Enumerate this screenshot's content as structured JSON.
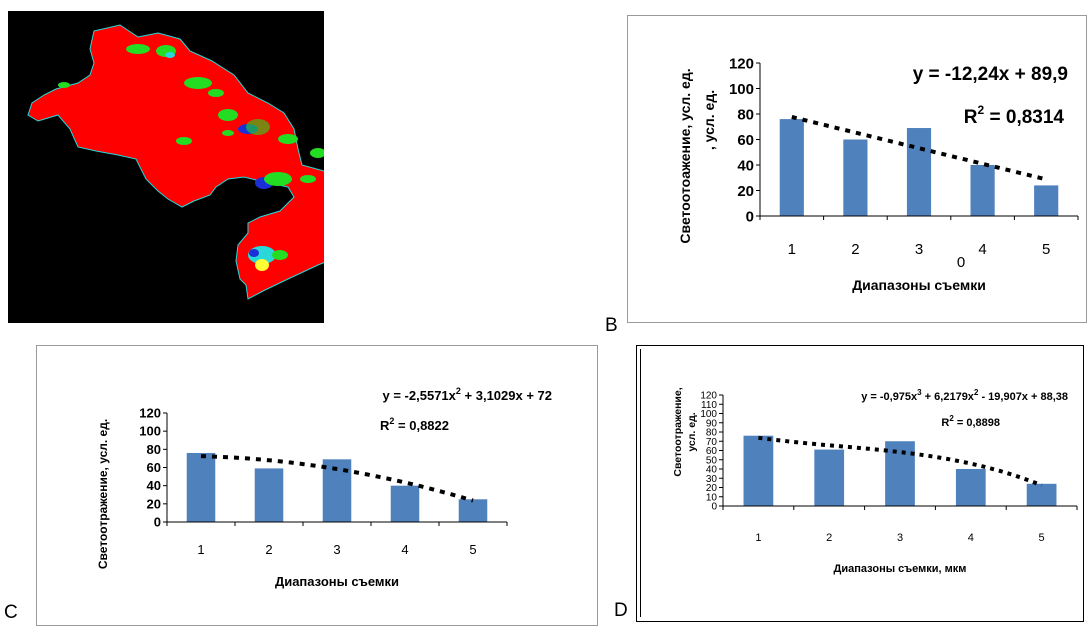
{
  "panels": {
    "b": {
      "letter": "B"
    },
    "c": {
      "letter": "C"
    },
    "d": {
      "letter": "D"
    }
  },
  "map": {
    "colors": {
      "background": "#000000",
      "field": "#ff0000",
      "green": "#22dd22",
      "blue": "#1a2fd6",
      "cyan": "#29d8d8",
      "yellow": "#ffff33"
    }
  },
  "chart_data": [
    {
      "id": "B",
      "type": "bar",
      "categories": [
        "1",
        "2",
        "3",
        "4",
        "5"
      ],
      "values": [
        76,
        60,
        69,
        40,
        24
      ],
      "ylim": [
        0,
        120
      ],
      "yticks": [
        "0",
        "20",
        "40",
        "60",
        "80",
        "100",
        "120"
      ],
      "ylabel": "Светоотоажение, усл. ед.",
      "ylabel2": ", усл. ед.",
      "xlabel": "Диапазоны съемки",
      "stray_label": "0",
      "trendline": {
        "type": "linear",
        "a": -12.24,
        "b": 89.9
      },
      "equation": "y = -12,24x + 89,9",
      "r2_prefix": "R",
      "r2_sup": "2",
      "r2_value": " = 0,8314",
      "bar_color": "#4f81bd",
      "grid": false
    },
    {
      "id": "C",
      "type": "bar",
      "categories": [
        "1",
        "2",
        "3",
        "4",
        "5"
      ],
      "values": [
        76,
        59,
        69,
        40,
        25
      ],
      "ylim": [
        0,
        120
      ],
      "yticks": [
        "0",
        "20",
        "40",
        "60",
        "80",
        "100",
        "120"
      ],
      "ylabel": "Светоотражение, усл. ед.",
      "xlabel": "Диапазоны съемки",
      "trendline": {
        "type": "poly2",
        "coef": [
          -2.5571,
          3.1029,
          72
        ]
      },
      "equation_parts": [
        "y = -2,5571x",
        "2",
        " + 3,1029x + 72"
      ],
      "r2_prefix": "R",
      "r2_sup": "2",
      "r2_value": " = 0,8822",
      "bar_color": "#4f81bd",
      "grid": false
    },
    {
      "id": "D",
      "type": "bar",
      "categories": [
        "1",
        "2",
        "3",
        "4",
        "5"
      ],
      "values": [
        76,
        61,
        70,
        40,
        24
      ],
      "ylim": [
        0,
        120
      ],
      "yticks": [
        "0",
        "10",
        "20",
        "30",
        "40",
        "50",
        "60",
        "70",
        "80",
        "90",
        "100",
        "110",
        "120"
      ],
      "ylabel": "Светоотражение,",
      "ylabel2": "усл. ед.",
      "xlabel": "Диапазоны съемки, мкм",
      "trendline": {
        "type": "poly3",
        "coef": [
          -0.975,
          6.2179,
          -19.907,
          88.38
        ]
      },
      "equation_parts": [
        "y = -0,975x",
        "3",
        " + 6,2179x",
        "2",
        " - 19,907x + 88,38"
      ],
      "r2_prefix": "R",
      "r2_sup": "2",
      "r2_value": " = 0,8898",
      "bar_color": "#4f81bd",
      "grid": false
    }
  ]
}
